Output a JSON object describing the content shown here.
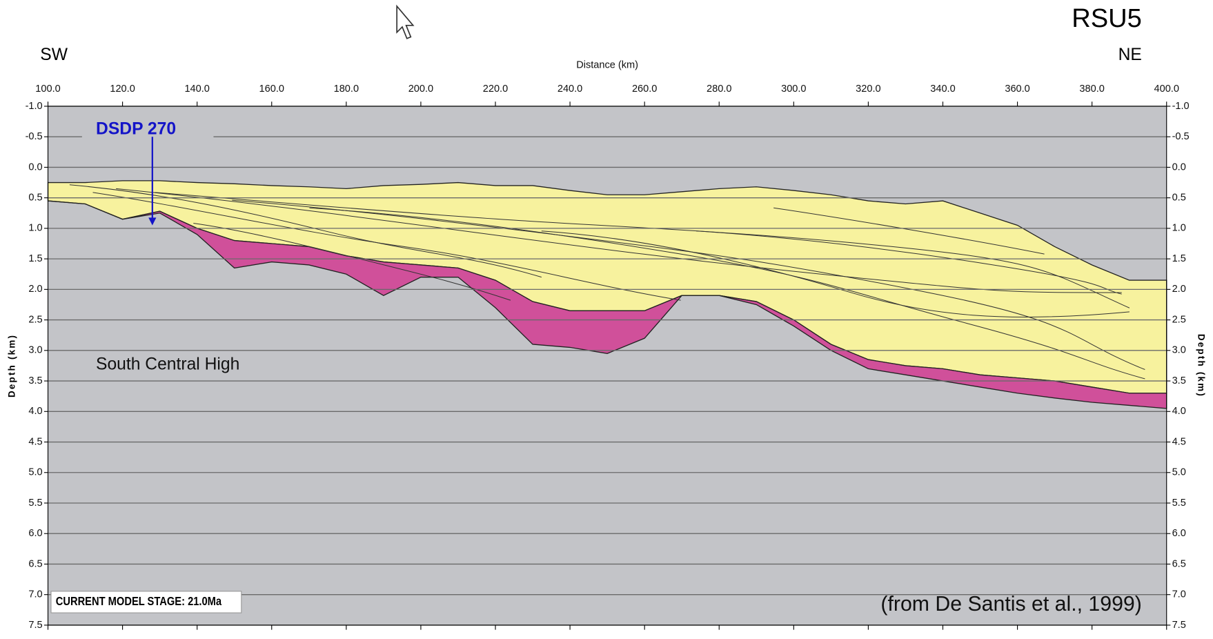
{
  "chart_data": {
    "type": "cross-section",
    "title": "RSU5",
    "left_label": "SW",
    "right_label": "NE",
    "x_label": "Distance (km)",
    "y_label": "Depth (km)",
    "annotation_region": "South Central High",
    "stage_label": "CURRENT MODEL STAGE: 21.0Ma",
    "source": "(from De Santis et al., 1999)",
    "well": {
      "label": "DSDP 270",
      "x": 128,
      "top": -0.5,
      "bottom": 0.95,
      "color": "#1414c8"
    },
    "xlim": [
      100,
      400
    ],
    "ylim": [
      -1,
      7.5
    ],
    "xticks": [
      {
        "value": 100,
        "label": "100.0"
      },
      {
        "value": 120,
        "label": "120.0"
      },
      {
        "value": 140,
        "label": "140.0"
      },
      {
        "value": 160,
        "label": "160.0"
      },
      {
        "value": 180,
        "label": "180.0"
      },
      {
        "value": 200,
        "label": "200.0"
      },
      {
        "value": 220,
        "label": "220.0"
      },
      {
        "value": 240,
        "label": "240.0"
      },
      {
        "value": 260,
        "label": "260.0"
      },
      {
        "value": 280,
        "label": "280.0"
      },
      {
        "value": 300,
        "label": "300.0"
      },
      {
        "value": 320,
        "label": "320.0"
      },
      {
        "value": 340,
        "label": "340.0"
      },
      {
        "value": 360,
        "label": "360.0"
      },
      {
        "value": 380,
        "label": "380.0"
      },
      {
        "value": 400,
        "label": "400.0"
      }
    ],
    "yticks": [
      {
        "value": -1,
        "label": "-1.0"
      },
      -0.5,
      {
        "value": 0,
        "label": "0.0"
      },
      0.5,
      {
        "value": 1,
        "label": "1.0"
      },
      1.5,
      {
        "value": 2,
        "label": "2.0"
      },
      2.5,
      {
        "value": 3,
        "label": "3.0"
      },
      3.5,
      {
        "value": 4,
        "label": "4.0"
      },
      4.5,
      {
        "value": 5,
        "label": "5.0"
      },
      5.5,
      {
        "value": 6,
        "label": "6.0"
      },
      6.5,
      {
        "value": 7,
        "label": "7.0"
      },
      7.5
    ],
    "y_inverted": true,
    "grid": true,
    "background_color": "#c3c4c8",
    "x": [
      100,
      110,
      120,
      130,
      140,
      150,
      160,
      170,
      180,
      190,
      200,
      210,
      220,
      230,
      240,
      250,
      260,
      270,
      280,
      290,
      300,
      310,
      320,
      330,
      340,
      350,
      360,
      370,
      380,
      390,
      400
    ],
    "layers": [
      {
        "color": "#f7f29e",
        "top": [
          0.25,
          0.25,
          0.22,
          0.22,
          0.25,
          0.27,
          0.3,
          0.32,
          0.35,
          0.3,
          0.28,
          0.25,
          0.3,
          0.3,
          0.38,
          0.45,
          0.45,
          0.4,
          0.35,
          0.32,
          0.38,
          0.45,
          0.55,
          0.6,
          0.55,
          0.75,
          0.95,
          1.3,
          1.6,
          1.85,
          1.85
        ],
        "base": [
          0.55,
          0.6,
          0.85,
          0.72,
          1.0,
          1.2,
          1.25,
          1.3,
          1.45,
          1.55,
          1.6,
          1.65,
          1.85,
          2.2,
          2.35,
          2.35,
          2.35,
          2.1,
          2.1,
          2.2,
          2.5,
          2.9,
          3.15,
          3.25,
          3.3,
          3.4,
          3.45,
          3.5,
          3.6,
          3.7,
          3.7
        ]
      },
      {
        "color": "#d0509a",
        "top": [
          0.55,
          0.6,
          0.85,
          0.72,
          1.0,
          1.2,
          1.25,
          1.3,
          1.45,
          1.55,
          1.6,
          1.65,
          1.85,
          2.2,
          2.35,
          2.35,
          2.35,
          2.1,
          2.1,
          2.2,
          2.5,
          2.9,
          3.15,
          3.25,
          3.3,
          3.4,
          3.45,
          3.5,
          3.6,
          3.7,
          3.7
        ],
        "base": [
          0.55,
          0.6,
          0.85,
          0.75,
          1.1,
          1.65,
          1.55,
          1.6,
          1.75,
          2.1,
          1.8,
          1.8,
          2.3,
          2.9,
          2.95,
          3.05,
          2.8,
          2.1,
          2.1,
          2.25,
          2.6,
          3.0,
          3.3,
          3.4,
          3.5,
          3.6,
          3.7,
          3.78,
          3.85,
          3.9,
          3.95
        ]
      }
    ]
  }
}
